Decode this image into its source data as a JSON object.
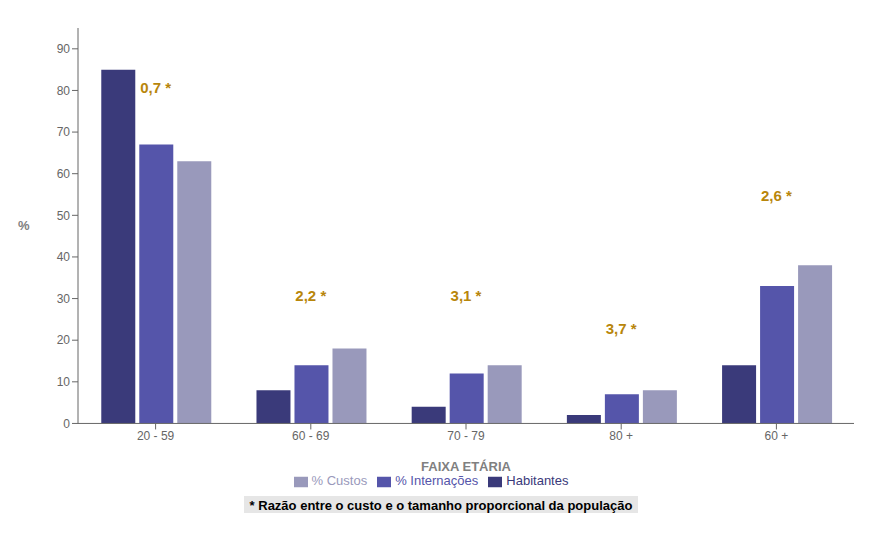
{
  "chart_data": {
    "type": "bar",
    "categories": [
      "20 - 59",
      "60 - 69",
      "70 - 79",
      "80 +",
      "60 +"
    ],
    "series": [
      {
        "name": "Habitantes",
        "color": "#3a3a7a",
        "values": [
          85,
          8,
          4,
          2,
          14
        ]
      },
      {
        "name": "% Internações",
        "color": "#5555aa",
        "values": [
          67,
          14,
          12,
          7,
          33
        ]
      },
      {
        "name": "% Custos",
        "color": "#9999bb",
        "values": [
          63,
          18,
          14,
          8,
          38
        ]
      }
    ],
    "annotations": [
      {
        "text": "0,7 *",
        "x": "20 - 59",
        "y": 78
      },
      {
        "text": "2,2 *",
        "x": "60 - 69",
        "y": 28
      },
      {
        "text": "3,1 *",
        "x": "70 - 79",
        "y": 28
      },
      {
        "text": "3,7 *",
        "x": "80 +",
        "y": 20
      },
      {
        "text": "2,6 *",
        "x": "60 +",
        "y": 52
      }
    ],
    "xlabel": "FAIXA ETÁRIA",
    "ylabel": "%",
    "footnote": "* Razão entre o custo e o tamanho proporcional da população",
    "ylim": [
      0,
      95
    ],
    "yticks": [
      0,
      10,
      20,
      30,
      40,
      50,
      60,
      70,
      80,
      90
    ],
    "grid": false,
    "legend": "bottom"
  }
}
